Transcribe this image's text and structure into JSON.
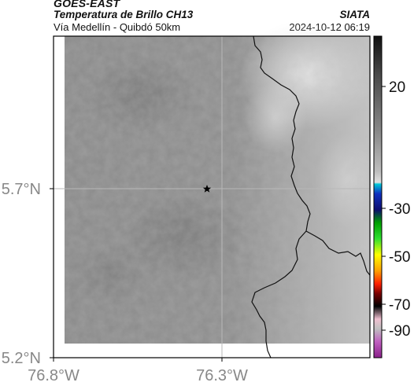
{
  "header": {
    "satellite": "GOES-EAST",
    "product": "Temperatura de Brillo CH13",
    "region": "Vía Medellín - Quibdó 50km",
    "agency": "SIATA",
    "timestamp": "2024-10-12 06:19"
  },
  "axes": {
    "lat_labels": [
      "5.7°N",
      "5.2°N"
    ],
    "lon_labels": [
      "76.8°W",
      "76.3°W"
    ]
  },
  "colorbar": {
    "ticks": [
      "20",
      "-30",
      "-50",
      "-70",
      "-90"
    ],
    "palette": [
      "#1a1a1a",
      "#555555",
      "#999999",
      "#dddddd",
      "#00bcd4",
      "#0d1b8c",
      "#00c000",
      "#ffff00",
      "#ff4000",
      "#000000",
      "#f0d0e0",
      "#a030a0"
    ]
  },
  "map": {
    "marker_icon": "star-icon",
    "background": "#8c8c8c",
    "border_color": "#111111"
  }
}
